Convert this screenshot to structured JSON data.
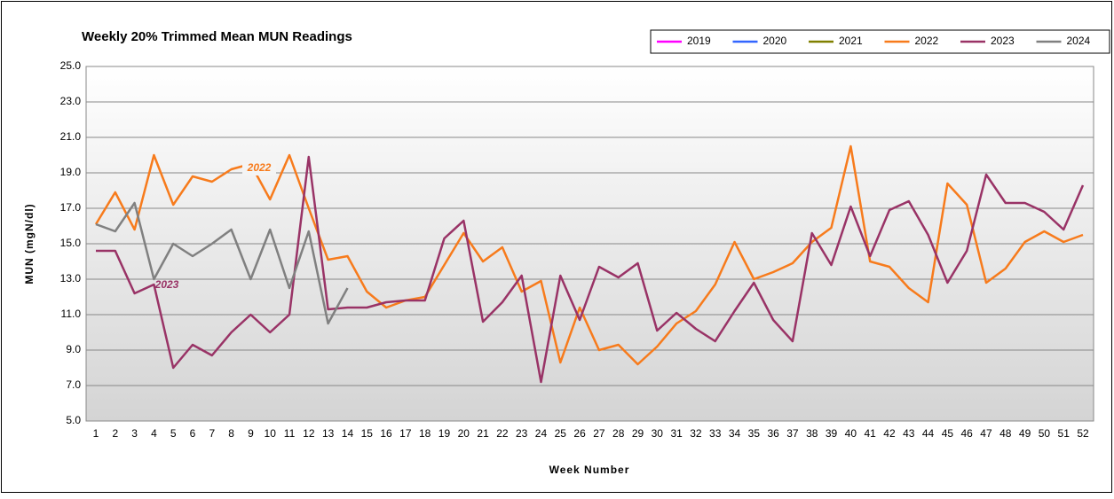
{
  "chart_data": {
    "type": "line",
    "title": "Weekly 20% Trimmed Mean MUN Readings",
    "xlabel": "Week Number",
    "ylabel": "MUN (mgN/dl)",
    "categories": [
      1,
      2,
      3,
      4,
      5,
      6,
      7,
      8,
      9,
      10,
      11,
      12,
      13,
      14,
      15,
      16,
      17,
      18,
      19,
      20,
      21,
      22,
      23,
      24,
      25,
      26,
      27,
      28,
      29,
      30,
      31,
      32,
      33,
      34,
      35,
      36,
      37,
      38,
      39,
      40,
      41,
      42,
      43,
      44,
      45,
      46,
      47,
      48,
      49,
      50,
      51,
      52
    ],
    "ylim": [
      5,
      25
    ],
    "yticks": [
      {
        "value": 5,
        "label": "5.0"
      },
      {
        "value": 7,
        "label": "7.0"
      },
      {
        "value": 9,
        "label": "9.0"
      },
      {
        "value": 11,
        "label": "11.0"
      },
      {
        "value": 13,
        "label": "13.0"
      },
      {
        "value": 15,
        "label": "15.0"
      },
      {
        "value": 17,
        "label": "17.0"
      },
      {
        "value": 19,
        "label": "19.0"
      },
      {
        "value": 21,
        "label": "21.0"
      },
      {
        "value": 23,
        "label": "23.0"
      },
      {
        "value": 25,
        "label": "25.0"
      }
    ],
    "grid": true,
    "legend": "top-right",
    "series": [
      {
        "name": "2019",
        "color": "#ff00ff",
        "values": [
          null,
          null,
          null,
          null,
          null,
          null,
          null,
          null,
          null,
          null,
          null,
          null,
          null,
          null,
          null,
          null,
          null,
          null,
          null,
          null,
          null,
          null,
          null,
          null,
          null,
          null,
          null,
          null,
          null,
          null,
          null,
          null,
          null,
          null,
          null,
          null,
          null,
          null,
          null,
          null,
          null,
          null,
          null,
          null,
          null,
          null,
          null,
          null,
          null,
          null,
          null,
          null
        ]
      },
      {
        "name": "2020",
        "color": "#3366ff",
        "values": [
          null,
          null,
          null,
          null,
          null,
          null,
          null,
          null,
          null,
          null,
          null,
          null,
          null,
          null,
          null,
          null,
          null,
          null,
          null,
          null,
          null,
          null,
          null,
          null,
          null,
          null,
          null,
          null,
          null,
          null,
          null,
          null,
          null,
          null,
          null,
          null,
          null,
          null,
          null,
          null,
          null,
          null,
          null,
          null,
          null,
          null,
          null,
          null,
          null,
          null,
          null,
          null
        ]
      },
      {
        "name": "2021",
        "color": "#808000",
        "values": [
          null,
          null,
          null,
          null,
          null,
          null,
          null,
          null,
          null,
          null,
          null,
          null,
          null,
          null,
          null,
          null,
          null,
          null,
          null,
          null,
          null,
          null,
          null,
          null,
          null,
          null,
          null,
          null,
          null,
          null,
          null,
          null,
          null,
          null,
          null,
          null,
          null,
          null,
          null,
          null,
          null,
          null,
          null,
          null,
          null,
          null,
          null,
          null,
          null,
          null,
          null,
          null
        ]
      },
      {
        "name": "2022",
        "color": "#f77b1c",
        "values": [
          16.1,
          17.9,
          15.8,
          20.0,
          17.2,
          18.8,
          18.5,
          19.2,
          19.5,
          17.5,
          20.0,
          17.0,
          14.1,
          14.3,
          12.3,
          11.4,
          11.8,
          12.0,
          13.8,
          15.6,
          14.0,
          14.8,
          12.3,
          12.9,
          8.3,
          11.4,
          9.0,
          9.3,
          8.2,
          9.2,
          10.5,
          11.2,
          12.7,
          15.1,
          13.0,
          13.4,
          13.9,
          15.1,
          15.9,
          20.5,
          14.0,
          13.7,
          12.5,
          11.7,
          18.4,
          17.2,
          12.8,
          13.6,
          15.1,
          15.7,
          15.1,
          15.5
        ]
      },
      {
        "name": "2023",
        "color": "#993366",
        "values": [
          14.6,
          14.6,
          12.2,
          12.7,
          8.0,
          9.3,
          8.7,
          10.0,
          11.0,
          10.0,
          11.0,
          19.9,
          11.3,
          11.4,
          11.4,
          11.7,
          11.8,
          11.8,
          15.3,
          16.3,
          10.6,
          11.7,
          13.2,
          7.2,
          13.2,
          10.7,
          13.7,
          13.1,
          13.9,
          10.1,
          11.1,
          10.2,
          9.5,
          11.2,
          12.8,
          10.7,
          9.5,
          15.6,
          13.8,
          17.1,
          14.3,
          16.9,
          17.4,
          15.5,
          12.8,
          14.6,
          18.9,
          17.3,
          17.3,
          16.8,
          15.8,
          18.3
        ]
      },
      {
        "name": "2024",
        "color": "#808080",
        "values": [
          16.1,
          15.7,
          17.3,
          13.0,
          15.0,
          14.3,
          15.0,
          15.8,
          13.0,
          15.8,
          12.5,
          15.7,
          10.5,
          12.5,
          null,
          null,
          null,
          null,
          null,
          null,
          null,
          null,
          null,
          null,
          null,
          null,
          null,
          null,
          null,
          null,
          null,
          null,
          null,
          null,
          null,
          null,
          null,
          null,
          null,
          null,
          null,
          null,
          null,
          null,
          null,
          null,
          null,
          null,
          null,
          null,
          null,
          null
        ]
      }
    ],
    "annotations": [
      {
        "text": "2022",
        "color": "#f77b1c"
      },
      {
        "text": "2023",
        "color": "#993366"
      }
    ]
  }
}
